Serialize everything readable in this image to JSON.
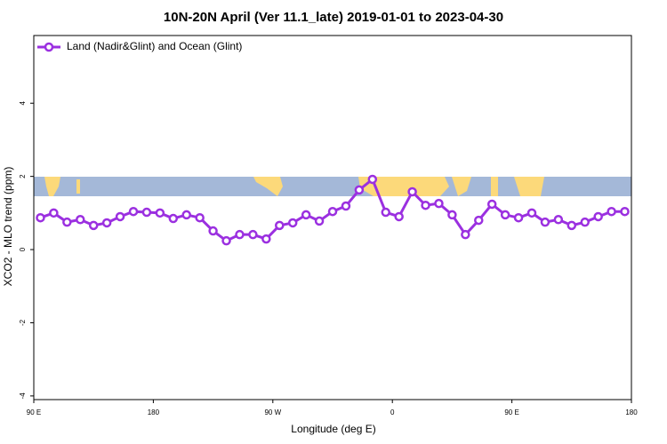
{
  "chart_data": {
    "type": "line",
    "title": "10N-20N April (Ver 11.1_late)   2019-01-01 to 2023-04-30",
    "x_label": "Longitude (deg E)",
    "y_label": "XCO2 - MLO trend (ppm)",
    "x": [
      95,
      105,
      115,
      125,
      135,
      145,
      155,
      165,
      175,
      185,
      195,
      205,
      215,
      225,
      235,
      245,
      255,
      265,
      275,
      285,
      295,
      305,
      315,
      325,
      335,
      345,
      355,
      365,
      375,
      385,
      395,
      405,
      415,
      425,
      435,
      445,
      455,
      465,
      475,
      485,
      495,
      505,
      515,
      525,
      535
    ],
    "series": [
      {
        "name": "Land (Nadir&Glint) and Ocean (Glint)",
        "color": "#9b30e0",
        "values": [
          0.87,
          1.0,
          0.75,
          0.82,
          0.66,
          0.73,
          0.9,
          1.04,
          1.02,
          1.0,
          0.85,
          0.95,
          0.87,
          0.51,
          0.24,
          0.41,
          0.41,
          0.29,
          0.66,
          0.73,
          0.95,
          0.78,
          1.04,
          1.19,
          1.63,
          1.92,
          1.02,
          0.9,
          1.58,
          1.21,
          1.26,
          0.95,
          0.41,
          0.8,
          1.24,
          0.95,
          0.87,
          1.0,
          0.75,
          0.82,
          0.66,
          0.75,
          0.9,
          1.04,
          1.04
        ]
      }
    ],
    "xlim": [
      90,
      540
    ],
    "xticks": [
      {
        "value": 90,
        "label": "90 E"
      },
      180,
      {
        "value": 270,
        "label": "90 W"
      },
      {
        "value": 360,
        "label": "0"
      },
      {
        "value": 450,
        "label": "90 E"
      },
      {
        "value": 540,
        "label": "180"
      }
    ],
    "ylim": [
      -4.1,
      5.85
    ],
    "yticks": [
      -4,
      -2,
      0,
      2,
      4
    ],
    "legend": "top-left"
  }
}
